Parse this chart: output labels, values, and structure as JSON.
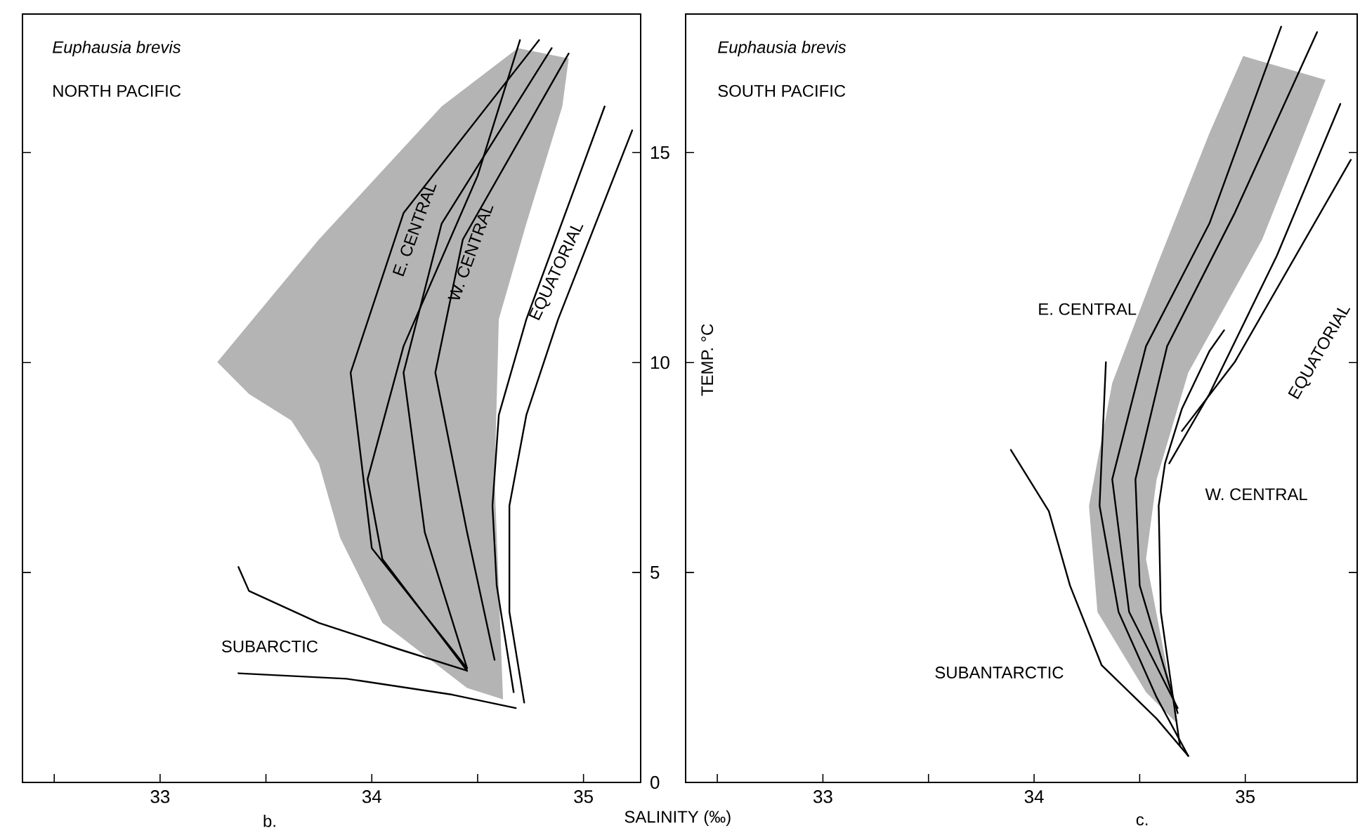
{
  "chart_data": [
    {
      "type": "line",
      "title": "Euphausia brevis",
      "subtitle": "NORTH PACIFIC",
      "xlabel": "SALINITY (‰)",
      "ylabel": "TEMP. °C",
      "xlim": [
        32.35,
        35.27
      ],
      "ylim": [
        0,
        18.3
      ],
      "xticks": [
        {
          "value": 32.5,
          "label": null
        },
        33,
        {
          "value": 33.5,
          "label": null
        },
        34,
        {
          "value": 34.5,
          "label": null
        },
        35
      ],
      "yticks": [
        0,
        5,
        10,
        15
      ],
      "series": [
        {
          "type": "area",
          "color": "#b4b4b4",
          "x": [
            33.27,
            33.75,
            34.33,
            34.69,
            34.93,
            34.9,
            34.73,
            34.6,
            34.58,
            34.62,
            34.45,
            34.05,
            33.85,
            33.75,
            33.62,
            33.42
          ],
          "values": [
            10.01,
            12.93,
            16.1,
            17.49,
            17.24,
            16.1,
            13.31,
            11.03,
            7.22,
            1.98,
            2.25,
            3.8,
            5.83,
            7.6,
            8.62,
            9.25
          ]
        },
        {
          "color": "#000000",
          "x": [
            34.67,
            34.59,
            34.57,
            34.6,
            34.73,
            35.1
          ],
          "values": [
            2.15,
            4.69,
            6.59,
            8.75,
            11.03,
            16.1
          ]
        },
        {
          "color": "#000000",
          "x": [
            34.72,
            34.65,
            34.65,
            34.73,
            34.88,
            35.23
          ],
          "values": [
            1.9,
            4.06,
            6.59,
            8.75,
            11.03,
            15.53
          ]
        },
        {
          "color": "#000000",
          "x": [
            33.37,
            33.42,
            33.75,
            34.13,
            34.45
          ],
          "values": [
            5.13,
            4.56,
            3.8,
            3.17,
            2.66
          ]
        },
        {
          "color": "#000000",
          "x": [
            33.37,
            33.88,
            34.38,
            34.68
          ],
          "values": [
            2.6,
            2.47,
            2.09,
            1.77
          ]
        },
        {
          "color": "#000000",
          "x": [
            34.45,
            34.0,
            33.9,
            34.15,
            34.79
          ],
          "values": [
            2.72,
            5.58,
            9.76,
            13.56,
            17.68
          ]
        },
        {
          "color": "#000000",
          "x": [
            34.45,
            34.05,
            33.98,
            34.15,
            34.5,
            34.7
          ],
          "values": [
            2.66,
            5.32,
            7.22,
            10.39,
            14.45,
            17.68
          ]
        },
        {
          "color": "#000000",
          "x": [
            34.45,
            34.25,
            34.15,
            34.33,
            34.85
          ],
          "values": [
            2.72,
            5.96,
            9.76,
            13.31,
            17.49
          ]
        },
        {
          "color": "#000000",
          "x": [
            34.58,
            34.45,
            34.3,
            34.43,
            34.93
          ],
          "values": [
            2.92,
            5.96,
            9.76,
            12.93,
            17.36
          ]
        }
      ],
      "annotations": [
        "E. CENTRAL",
        "W. CENTRAL",
        "EQUATORIAL",
        "SUBARCTIC",
        "b."
      ]
    },
    {
      "type": "line",
      "title": "Euphausia brevis",
      "subtitle": "SOUTH PACIFIC",
      "tick_labels": "x",
      "xlim": [
        32.35,
        35.53
      ],
      "ylim": [
        0,
        18.3
      ],
      "xticks": [
        {
          "value": 32.5,
          "label": null
        },
        33,
        {
          "value": 33.5,
          "label": null
        },
        34,
        {
          "value": 34.5,
          "label": null
        },
        35
      ],
      "yticks": [
        0,
        5,
        10,
        15
      ],
      "series": [
        {
          "type": "area",
          "color": "#b4b4b4",
          "x": [
            34.99,
            35.38,
            35.08,
            34.73,
            34.58,
            34.53,
            34.68,
            34.53,
            34.3,
            34.26,
            34.37,
            34.58,
            34.83
          ],
          "values": [
            17.3,
            16.73,
            12.93,
            9.76,
            7.22,
            5.32,
            1.39,
            2.15,
            4.06,
            6.59,
            9.51,
            12.29,
            15.46
          ]
        },
        {
          "color": "#000000",
          "x": [
            33.89,
            34.07,
            34.17,
            34.32,
            34.58,
            34.73
          ],
          "values": [
            7.92,
            6.46,
            4.69,
            2.79,
            1.52,
            0.63
          ]
        },
        {
          "color": "#000000",
          "x": [
            34.73,
            34.58,
            34.4,
            34.31,
            34.34
          ],
          "values": [
            0.63,
            2.03,
            4.06,
            6.59,
            10.01
          ]
        },
        {
          "color": "#000000",
          "x": [
            34.68,
            34.45,
            34.37,
            34.53,
            34.83,
            35.17
          ],
          "values": [
            1.77,
            4.06,
            7.22,
            10.39,
            13.31,
            18.0
          ]
        },
        {
          "color": "#000000",
          "x": [
            34.68,
            34.5,
            34.48,
            34.63,
            34.95,
            35.34
          ],
          "values": [
            1.65,
            4.69,
            7.22,
            10.39,
            13.56,
            17.87
          ]
        },
        {
          "color": "#000000",
          "x": [
            34.64,
            34.83,
            35.15,
            35.45
          ],
          "values": [
            7.6,
            9.25,
            12.55,
            16.16
          ]
        },
        {
          "color": "#000000",
          "x": [
            34.7,
            34.95,
            35.5
          ],
          "values": [
            8.37,
            10.01,
            14.83
          ]
        },
        {
          "color": "#000000",
          "x": [
            34.69,
            34.6,
            34.59,
            34.62,
            34.7,
            34.83,
            34.9
          ],
          "values": [
            0.89,
            4.06,
            6.59,
            7.6,
            8.9,
            10.27,
            10.77
          ]
        }
      ],
      "annotations": [
        "E. CENTRAL",
        "EQUATORIAL",
        "W. CENTRAL",
        "SUBANTARCTIC",
        "c."
      ]
    }
  ]
}
